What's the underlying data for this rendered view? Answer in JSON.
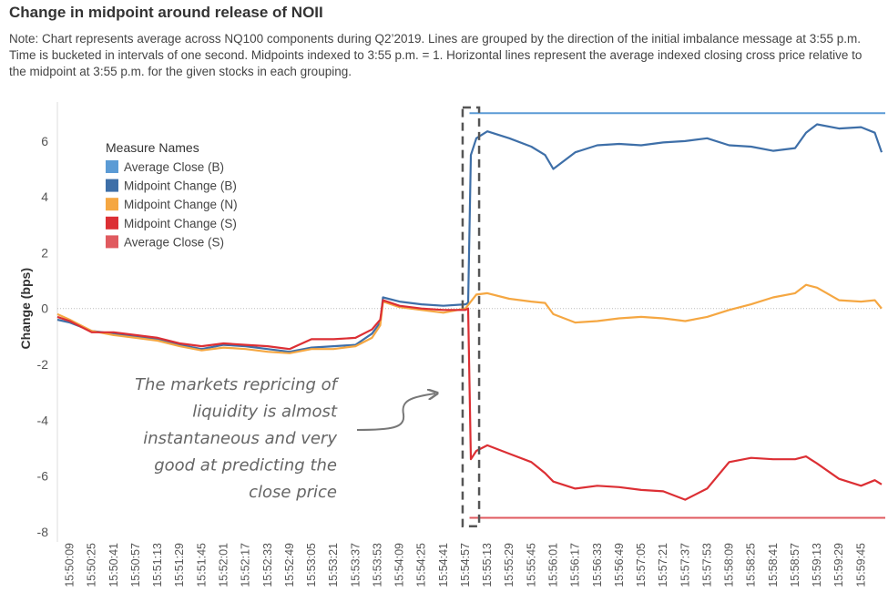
{
  "header": {
    "title": "Change in midpoint around release of NOII",
    "note": "Note: Chart represents average across NQ100 components during Q2’2019. Lines are grouped by the direction of the initial imbalance message at 3:55 p.m. Time is bucketed in intervals of one second. Midpoints indexed to 3:55 p.m. = 1. Horizontal lines represent the average indexed closing cross price relative to the midpoint at 3:55 p.m. for the given stocks in each grouping."
  },
  "chart_data": {
    "type": "line",
    "title": "Change in midpoint around release of NOII",
    "ylabel": "Change (bps)",
    "xlabel": "",
    "ylim": [
      -8.2,
      7.4
    ],
    "yticks": [
      6,
      4,
      2,
      0,
      -2,
      -4,
      -6,
      -8
    ],
    "x_start": "15:50:00",
    "x_end": "16:00:00",
    "xticks": [
      "15:50:09",
      "15:50:25",
      "15:50:41",
      "15:50:57",
      "15:51:13",
      "15:51:29",
      "15:51:45",
      "15:52:01",
      "15:52:17",
      "15:52:33",
      "15:52:49",
      "15:53:05",
      "15:53:21",
      "15:53:37",
      "15:53:53",
      "15:54:09",
      "15:54:25",
      "15:54:41",
      "15:54:57",
      "15:55:13",
      "15:55:29",
      "15:55:45",
      "15:56:01",
      "15:56:17",
      "15:56:33",
      "15:56:49",
      "15:57:05",
      "15:57:21",
      "15:57:37",
      "15:57:53",
      "15:58:09",
      "15:58:25",
      "15:58:41",
      "15:58:57",
      "15:59:13",
      "15:59:29",
      "15:59:45"
    ],
    "grid": false,
    "zero_line": true,
    "legend": {
      "title": "Measure Names",
      "position": "top-left",
      "items": [
        {
          "label": "Average Close (B)",
          "color": "#5b9bd5"
        },
        {
          "label": "Midpoint Change (B)",
          "color": "#3e6fa8"
        },
        {
          "label": "Midpoint Change (N)",
          "color": "#f5a742"
        },
        {
          "label": "Midpoint Change (S)",
          "color": "#dc2f34"
        },
        {
          "label": "Average Close (S)",
          "color": "#e05a5f"
        }
      ]
    },
    "series": [
      {
        "name": "Midpoint Change (B)",
        "color": "#3e6fa8",
        "points": [
          [
            "15:50:00",
            -0.4
          ],
          [
            "15:50:09",
            -0.5
          ],
          [
            "15:50:25",
            -0.8
          ],
          [
            "15:50:41",
            -0.9
          ],
          [
            "15:50:57",
            -1.0
          ],
          [
            "15:51:13",
            -1.1
          ],
          [
            "15:51:29",
            -1.3
          ],
          [
            "15:51:45",
            -1.45
          ],
          [
            "15:52:01",
            -1.3
          ],
          [
            "15:52:17",
            -1.35
          ],
          [
            "15:52:33",
            -1.45
          ],
          [
            "15:52:49",
            -1.55
          ],
          [
            "15:53:05",
            -1.4
          ],
          [
            "15:53:21",
            -1.35
          ],
          [
            "15:53:37",
            -1.3
          ],
          [
            "15:53:49",
            -0.9
          ],
          [
            "15:53:55",
            -0.5
          ],
          [
            "15:53:57",
            0.4
          ],
          [
            "15:54:09",
            0.25
          ],
          [
            "15:54:25",
            0.15
          ],
          [
            "15:54:41",
            0.1
          ],
          [
            "15:54:57",
            0.15
          ],
          [
            "15:54:59",
            0.2
          ],
          [
            "15:55:01",
            5.5
          ],
          [
            "15:55:05",
            6.1
          ],
          [
            "15:55:13",
            6.35
          ],
          [
            "15:55:29",
            6.1
          ],
          [
            "15:55:45",
            5.8
          ],
          [
            "15:55:55",
            5.5
          ],
          [
            "15:56:01",
            5.0
          ],
          [
            "15:56:17",
            5.6
          ],
          [
            "15:56:33",
            5.85
          ],
          [
            "15:56:49",
            5.9
          ],
          [
            "15:57:05",
            5.85
          ],
          [
            "15:57:21",
            5.95
          ],
          [
            "15:57:37",
            6.0
          ],
          [
            "15:57:53",
            6.1
          ],
          [
            "15:58:09",
            5.85
          ],
          [
            "15:58:25",
            5.8
          ],
          [
            "15:58:41",
            5.65
          ],
          [
            "15:58:57",
            5.75
          ],
          [
            "15:59:05",
            6.3
          ],
          [
            "15:59:13",
            6.6
          ],
          [
            "15:59:29",
            6.45
          ],
          [
            "15:59:45",
            6.5
          ],
          [
            "15:59:55",
            6.3
          ],
          [
            "16:00:00",
            5.6
          ]
        ]
      },
      {
        "name": "Midpoint Change (N)",
        "color": "#f5a742",
        "points": [
          [
            "15:50:00",
            -0.2
          ],
          [
            "15:50:09",
            -0.4
          ],
          [
            "15:50:25",
            -0.8
          ],
          [
            "15:50:41",
            -0.95
          ],
          [
            "15:50:57",
            -1.05
          ],
          [
            "15:51:13",
            -1.15
          ],
          [
            "15:51:29",
            -1.35
          ],
          [
            "15:51:45",
            -1.5
          ],
          [
            "15:52:01",
            -1.4
          ],
          [
            "15:52:17",
            -1.45
          ],
          [
            "15:52:33",
            -1.55
          ],
          [
            "15:52:49",
            -1.6
          ],
          [
            "15:53:05",
            -1.45
          ],
          [
            "15:53:21",
            -1.45
          ],
          [
            "15:53:37",
            -1.35
          ],
          [
            "15:53:49",
            -1.05
          ],
          [
            "15:53:55",
            -0.6
          ],
          [
            "15:53:57",
            0.25
          ],
          [
            "15:54:09",
            0.05
          ],
          [
            "15:54:25",
            -0.05
          ],
          [
            "15:54:41",
            -0.15
          ],
          [
            "15:54:57",
            0.0
          ],
          [
            "15:55:05",
            0.5
          ],
          [
            "15:55:13",
            0.55
          ],
          [
            "15:55:29",
            0.35
          ],
          [
            "15:55:45",
            0.25
          ],
          [
            "15:55:55",
            0.2
          ],
          [
            "15:56:01",
            -0.2
          ],
          [
            "15:56:17",
            -0.5
          ],
          [
            "15:56:33",
            -0.45
          ],
          [
            "15:56:49",
            -0.35
          ],
          [
            "15:57:05",
            -0.3
          ],
          [
            "15:57:21",
            -0.35
          ],
          [
            "15:57:37",
            -0.45
          ],
          [
            "15:57:53",
            -0.3
          ],
          [
            "15:58:09",
            -0.05
          ],
          [
            "15:58:25",
            0.15
          ],
          [
            "15:58:41",
            0.4
          ],
          [
            "15:58:57",
            0.55
          ],
          [
            "15:59:05",
            0.85
          ],
          [
            "15:59:13",
            0.75
          ],
          [
            "15:59:29",
            0.3
          ],
          [
            "15:59:45",
            0.25
          ],
          [
            "15:59:55",
            0.3
          ],
          [
            "16:00:00",
            0.0
          ]
        ]
      },
      {
        "name": "Midpoint Change (S)",
        "color": "#dc2f34",
        "points": [
          [
            "15:50:00",
            -0.3
          ],
          [
            "15:50:09",
            -0.45
          ],
          [
            "15:50:25",
            -0.85
          ],
          [
            "15:50:41",
            -0.85
          ],
          [
            "15:50:57",
            -0.95
          ],
          [
            "15:51:13",
            -1.05
          ],
          [
            "15:51:29",
            -1.25
          ],
          [
            "15:51:45",
            -1.35
          ],
          [
            "15:52:01",
            -1.25
          ],
          [
            "15:52:17",
            -1.3
          ],
          [
            "15:52:33",
            -1.35
          ],
          [
            "15:52:49",
            -1.45
          ],
          [
            "15:53:05",
            -1.1
          ],
          [
            "15:53:21",
            -1.1
          ],
          [
            "15:53:37",
            -1.05
          ],
          [
            "15:53:49",
            -0.75
          ],
          [
            "15:53:55",
            -0.4
          ],
          [
            "15:53:57",
            0.3
          ],
          [
            "15:54:09",
            0.1
          ],
          [
            "15:54:25",
            0.0
          ],
          [
            "15:54:41",
            -0.05
          ],
          [
            "15:54:57",
            -0.05
          ],
          [
            "15:54:59",
            0.0
          ],
          [
            "15:55:01",
            -5.4
          ],
          [
            "15:55:05",
            -5.1
          ],
          [
            "15:55:13",
            -4.9
          ],
          [
            "15:55:29",
            -5.2
          ],
          [
            "15:55:45",
            -5.5
          ],
          [
            "15:55:55",
            -5.9
          ],
          [
            "15:56:01",
            -6.2
          ],
          [
            "15:56:17",
            -6.45
          ],
          [
            "15:56:33",
            -6.35
          ],
          [
            "15:56:49",
            -6.4
          ],
          [
            "15:57:05",
            -6.5
          ],
          [
            "15:57:21",
            -6.55
          ],
          [
            "15:57:37",
            -6.85
          ],
          [
            "15:57:53",
            -6.45
          ],
          [
            "15:58:09",
            -5.5
          ],
          [
            "15:58:25",
            -5.35
          ],
          [
            "15:58:41",
            -5.4
          ],
          [
            "15:58:57",
            -5.4
          ],
          [
            "15:59:05",
            -5.3
          ],
          [
            "15:59:13",
            -5.55
          ],
          [
            "15:59:29",
            -6.1
          ],
          [
            "15:59:45",
            -6.35
          ],
          [
            "15:59:55",
            -6.15
          ],
          [
            "16:00:00",
            -6.3
          ]
        ]
      }
    ],
    "reference_lines": [
      {
        "name": "Average Close (B)",
        "value": 7.0,
        "from": "15:55:00",
        "color": "#5b9bd5"
      },
      {
        "name": "Average Close (S)",
        "value": -7.5,
        "from": "15:55:00",
        "color": "#e05a5f"
      }
    ],
    "annotation": {
      "lines": [
        "The markets repricing of",
        "liquidity is almost",
        "instantaneous and very",
        "good at predicting the",
        "close price"
      ],
      "box_from": "15:54:55",
      "box_to": "15:55:07"
    }
  }
}
